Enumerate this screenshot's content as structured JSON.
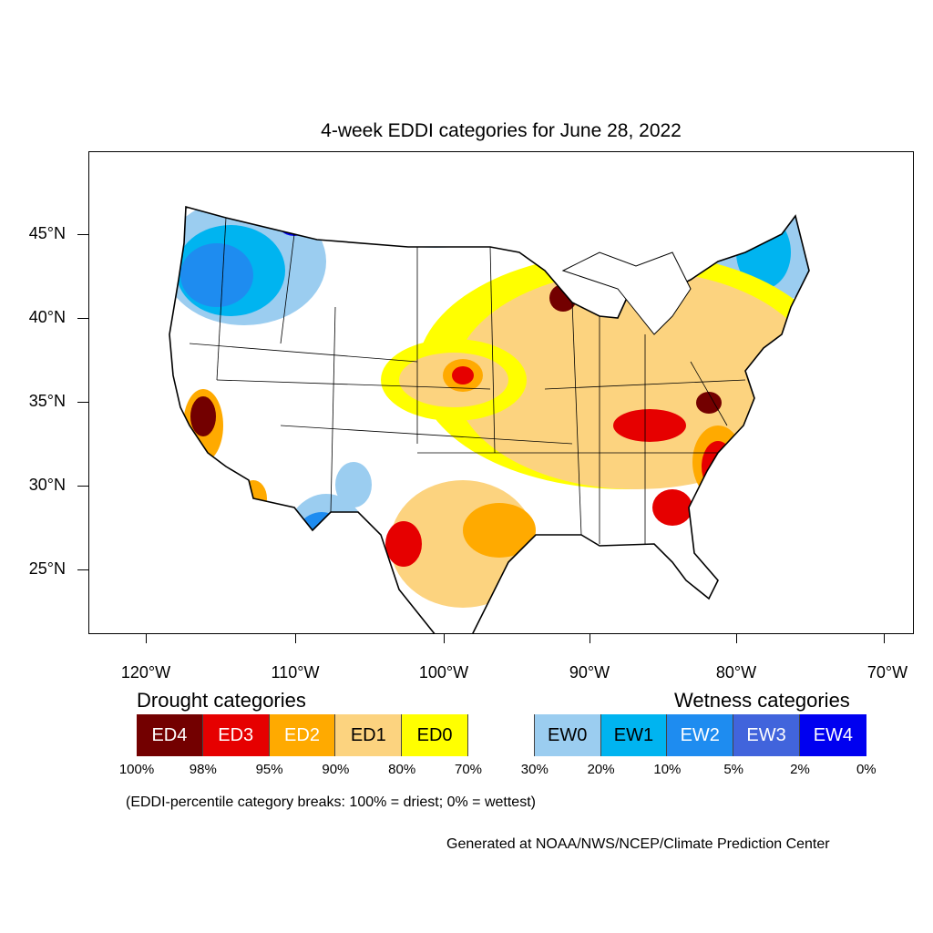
{
  "title": "4-week EDDI categories for June 28, 2022",
  "y_axis": {
    "ticks": [
      "45°N",
      "40°N",
      "35°N",
      "30°N",
      "25°N"
    ]
  },
  "x_axis": {
    "ticks": [
      "120°W",
      "110°W",
      "100°W",
      "90°W",
      "80°W",
      "70°W"
    ]
  },
  "legend": {
    "drought_title": "Drought categories",
    "wetness_title": "Wetness categories",
    "categories": [
      {
        "label": "ED4",
        "color": "#730000",
        "text_color": "#ffffff"
      },
      {
        "label": "ED3",
        "color": "#e60000",
        "text_color": "#ffffff"
      },
      {
        "label": "ED2",
        "color": "#ffaa00",
        "text_color": "#ffffff"
      },
      {
        "label": "ED1",
        "color": "#fcd37f",
        "text_color": "#000000"
      },
      {
        "label": "ED0",
        "color": "#ffff00",
        "text_color": "#000000"
      },
      {
        "label": "",
        "color": "#ffffff",
        "text_color": "#000000"
      },
      {
        "label": "EW0",
        "color": "#9bcdf0",
        "text_color": "#000000"
      },
      {
        "label": "EW1",
        "color": "#00b4f0",
        "text_color": "#000000"
      },
      {
        "label": "EW2",
        "color": "#1e8cf0",
        "text_color": "#ffffff"
      },
      {
        "label": "EW3",
        "color": "#4164dc",
        "text_color": "#ffffff"
      },
      {
        "label": "EW4",
        "color": "#0000f0",
        "text_color": "#ffffff"
      }
    ],
    "breaks": [
      "100%",
      "98%",
      "95%",
      "90%",
      "80%",
      "70%",
      "30%",
      "20%",
      "10%",
      "5%",
      "2%",
      "0%"
    ]
  },
  "note": "(EDDI-percentile category breaks: 100% = driest; 0% = wettest)",
  "credit": "Generated at NOAA/NWS/NCEP/Climate Prediction Center"
}
